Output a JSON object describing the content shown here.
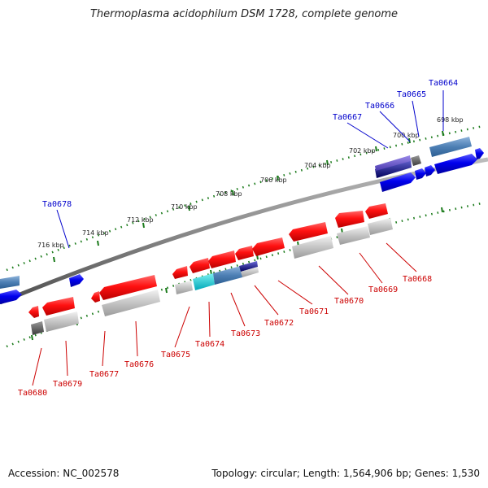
{
  "title": "Thermoplasma acidophilum DSM 1728, complete genome",
  "footer": {
    "accession": "Accession: NC_002578",
    "summary": "Topology: circular; Length: 1,564,906 bp; Genes: 1,530"
  },
  "colors": {
    "forward_label": "#0000cc",
    "reverse_label": "#cc0000",
    "tick": "#1a7a1a",
    "backbone": "#7a7a7a"
  },
  "scale_labels": [
    "698 kbp",
    "700 kbp",
    "702 kbp",
    "704 kbp",
    "706 kbp",
    "708 kbp",
    "710 kbp",
    "712 kbp",
    "714 kbp",
    "716 kbp"
  ],
  "forward_genes": [
    "Ta0664",
    "Ta0665",
    "Ta0666",
    "Ta0667",
    "Ta0678"
  ],
  "reverse_genes": [
    "Ta0668",
    "Ta0669",
    "Ta0670",
    "Ta0671",
    "Ta0672",
    "Ta0673",
    "Ta0674",
    "Ta0675",
    "Ta0676",
    "Ta0677",
    "Ta0679",
    "Ta0680"
  ]
}
